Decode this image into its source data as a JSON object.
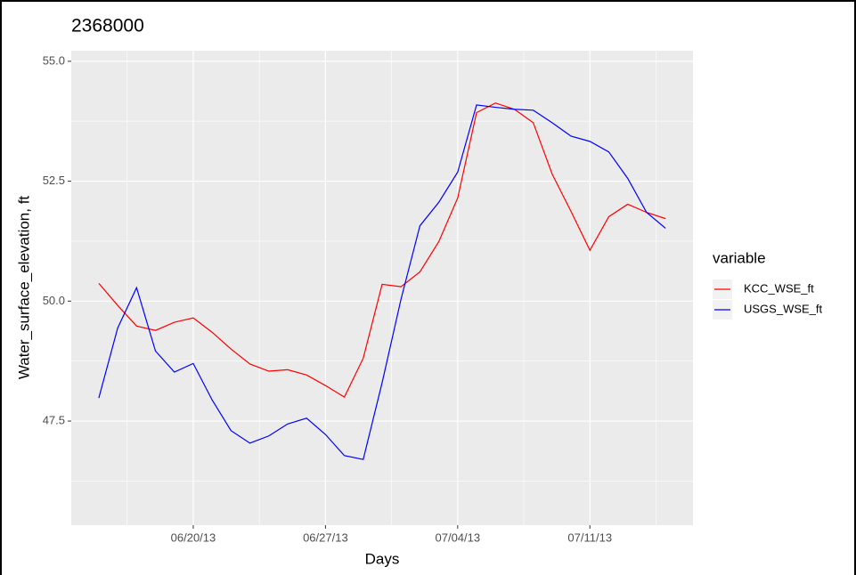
{
  "chart_data": {
    "type": "line",
    "title": "2368000",
    "x_label": "Days",
    "y_label": "Water_surface_elevation, ft",
    "legend_title": "variable",
    "legend_position": "right",
    "grid": true,
    "x": [
      "2013-06-15",
      "2013-06-16",
      "2013-06-17",
      "2013-06-18",
      "2013-06-19",
      "2013-06-20",
      "2013-06-21",
      "2013-06-22",
      "2013-06-23",
      "2013-06-24",
      "2013-06-25",
      "2013-06-26",
      "2013-06-27",
      "2013-06-28",
      "2013-06-29",
      "2013-06-30",
      "2013-07-01",
      "2013-07-02",
      "2013-07-03",
      "2013-07-04",
      "2013-07-05",
      "2013-07-06",
      "2013-07-07",
      "2013-07-08",
      "2013-07-09",
      "2013-07-10",
      "2013-07-11",
      "2013-07-12",
      "2013-07-13",
      "2013-07-14",
      "2013-07-15"
    ],
    "series": [
      {
        "name": "KCC_WSE_ft",
        "color": "#ff0000",
        "values": [
          50.37,
          49.91,
          49.48,
          49.39,
          49.56,
          49.65,
          49.35,
          49.0,
          48.69,
          48.54,
          48.57,
          48.46,
          48.24,
          48.0,
          48.81,
          50.35,
          50.3,
          50.61,
          51.24,
          52.15,
          53.93,
          54.13,
          54.0,
          53.72,
          52.65,
          51.87,
          51.06,
          51.76,
          52.02,
          51.85,
          51.72
        ]
      },
      {
        "name": "USGS_WSE_ft",
        "color": "#0000ff",
        "values": [
          47.98,
          49.44,
          50.28,
          48.96,
          48.52,
          48.7,
          47.94,
          47.3,
          47.04,
          47.19,
          47.44,
          47.56,
          47.22,
          46.78,
          46.7,
          48.3,
          50.04,
          51.57,
          52.06,
          52.69,
          54.09,
          54.04,
          54.0,
          53.98,
          53.72,
          53.44,
          53.33,
          53.11,
          52.56,
          51.85,
          51.52
        ]
      }
    ],
    "xlim": [
      "2013-06-13T13:00Z",
      "2013-07-16T11:00Z"
    ],
    "xticks": [
      {
        "value": "2013-06-20",
        "label": "06/20/13"
      },
      {
        "value": "2013-06-27",
        "label": "06/27/13"
      },
      {
        "value": "2013-07-04",
        "label": "07/04/13"
      },
      {
        "value": "2013-07-11",
        "label": "07/11/13"
      }
    ],
    "ylim": [
      45.33,
      55.22
    ],
    "yticks": [
      {
        "value": 47.5,
        "label": "47.5"
      },
      {
        "value": 50,
        "label": "50.0"
      },
      {
        "value": 52.5,
        "label": "52.5"
      },
      {
        "value": 55,
        "label": "55.0"
      }
    ]
  }
}
